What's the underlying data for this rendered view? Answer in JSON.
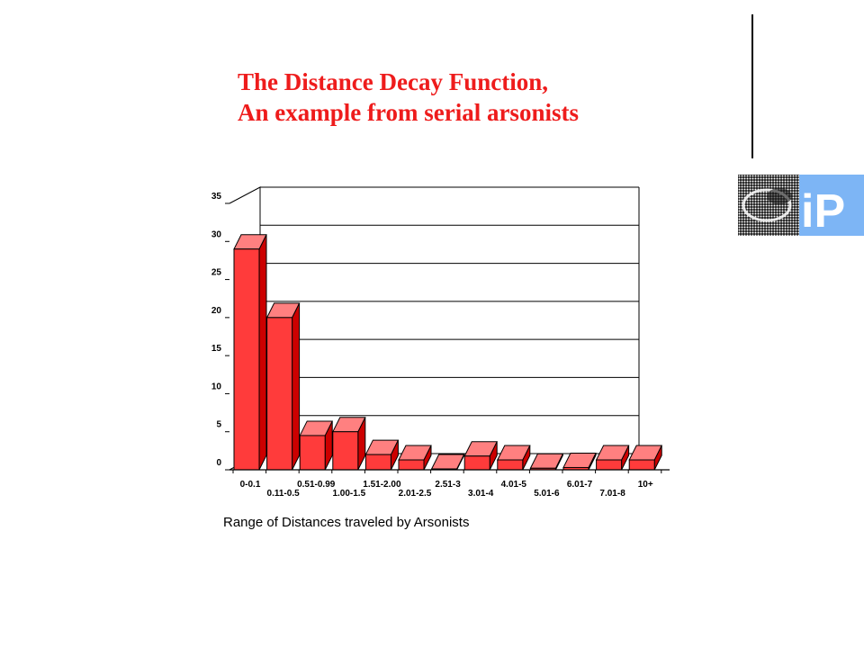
{
  "slide": {
    "title_line1": "The Distance Decay Function,",
    "title_line2": "An example from serial arsonists"
  },
  "logo": {
    "text": "iP",
    "icon": "institute-logo"
  },
  "colors": {
    "title": "#ee1c1c",
    "bar_front": "#ff3b3b",
    "bar_side": "#cc0000",
    "bar_top": "#ff8080",
    "logo_bg": "#7db5f5"
  },
  "chart_data": {
    "type": "bar",
    "xlabel": "Range of Distances traveled by Arsonists",
    "ylabel": "",
    "ylim": [
      0,
      35
    ],
    "yticks": [
      0,
      5,
      10,
      15,
      20,
      25,
      30,
      35
    ],
    "grid": true,
    "categories": [
      "0-0.1",
      "0.11-0.5",
      "0.51-0.99",
      "1.00-1.5",
      "1.51-2.00",
      "2.01-2.5",
      "2.51-3",
      "3.01-4",
      "4.01-5",
      "5.01-6",
      "6.01-7",
      "7.01-8",
      "10+"
    ],
    "values": [
      29,
      20,
      4.5,
      5,
      2,
      1.3,
      0.1,
      1.8,
      1.3,
      0.2,
      0.3,
      1.3,
      1.3
    ]
  }
}
